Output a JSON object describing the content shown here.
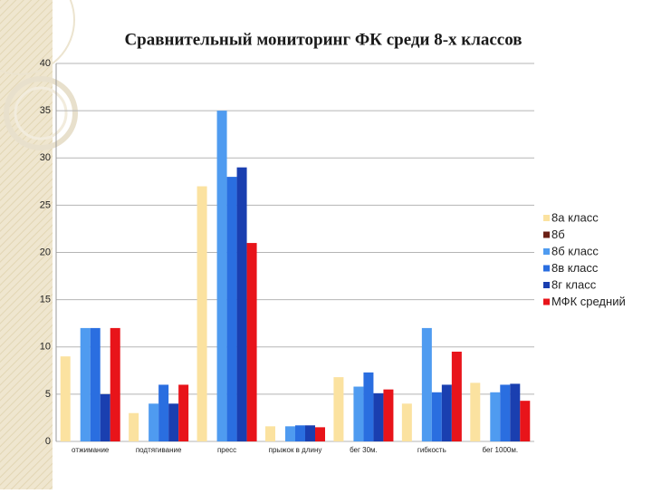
{
  "chart_data": {
    "type": "bar",
    "title": "Сравнительный мониторинг ФК среди 8-х классов",
    "categories": [
      "отжимание",
      "подтягивание",
      "пресс",
      "прыжок в длину",
      "бег 30м.",
      "гибкость",
      "бег 1000м."
    ],
    "series": [
      {
        "name": "8а класс",
        "color": "#fbe2a0",
        "values": [
          9,
          3,
          27,
          1.6,
          6.8,
          4,
          6.2
        ]
      },
      {
        "name": "8б",
        "color": "#6b1f14",
        "values": [
          0,
          0,
          0,
          0,
          0,
          0,
          0
        ]
      },
      {
        "name": "8б класс",
        "color": "#4f9bf0",
        "values": [
          12,
          4,
          35,
          1.6,
          5.8,
          12,
          5.2
        ]
      },
      {
        "name": "8в класс",
        "color": "#2a6ee0",
        "values": [
          12,
          6,
          28,
          1.7,
          7.3,
          5.2,
          6
        ]
      },
      {
        "name": "8г класс",
        "color": "#1a3fb0",
        "values": [
          5,
          4,
          29,
          1.7,
          5.1,
          6,
          6.1
        ]
      },
      {
        "name": "МФК средний",
        "color": "#e8141a",
        "values": [
          12,
          6,
          21,
          1.5,
          5.5,
          9.5,
          4.3
        ]
      }
    ],
    "ylim": [
      0,
      40
    ],
    "yticks": [
      0,
      5,
      10,
      15,
      20,
      25,
      30,
      35,
      40
    ],
    "grid": true,
    "legend": "right"
  }
}
